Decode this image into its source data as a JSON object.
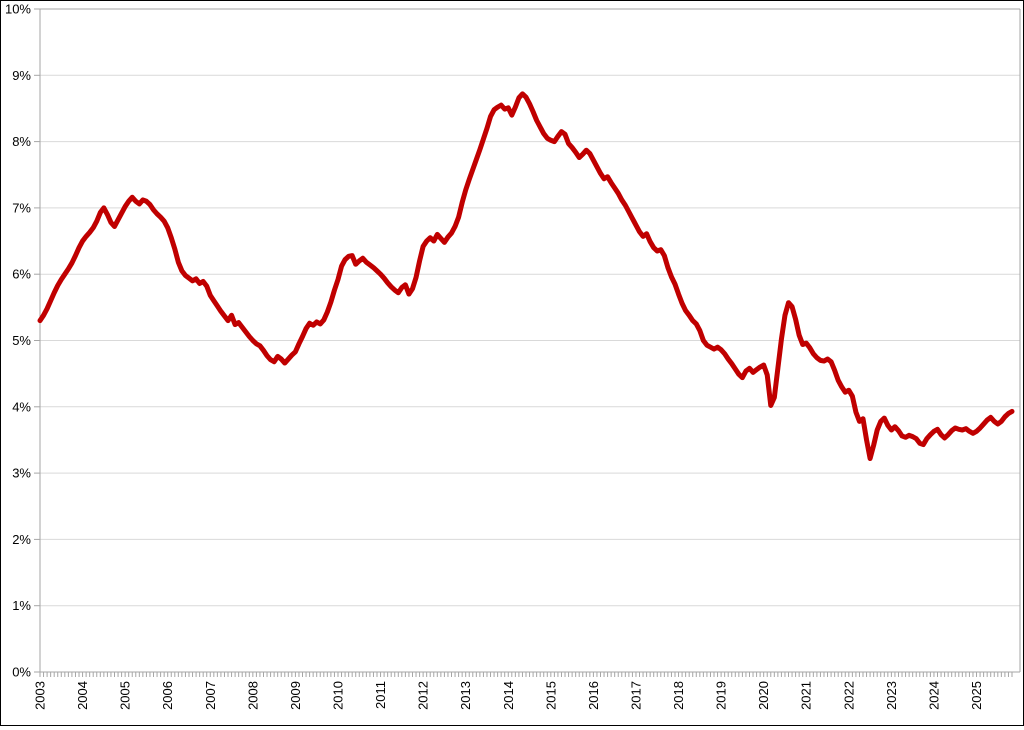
{
  "chart_data": {
    "type": "line",
    "title": "",
    "legend_position": "none",
    "grid": "horizontal",
    "frequency": "monthly",
    "x_start": "2003-01",
    "x_end": "2025-11",
    "ylim": [
      0,
      10
    ],
    "y_tick_labels": [
      "0%",
      "1%",
      "2%",
      "3%",
      "4%",
      "5%",
      "6%",
      "7%",
      "8%",
      "9%",
      "10%"
    ],
    "x_tick_labels": [
      "2003",
      "2004",
      "2005",
      "2006",
      "2007",
      "2008",
      "2009",
      "2010",
      "2011",
      "2012",
      "2013",
      "2014",
      "2015",
      "2016",
      "2017",
      "2018",
      "2019",
      "2020",
      "2021",
      "2022",
      "2023",
      "2024",
      "2025"
    ],
    "colors": {
      "line": "#C00000",
      "gridline": "#D9D9D9",
      "axis": "#A6A6A6",
      "tick": "#A6A6A6",
      "label": "#000000",
      "background": "#FFFFFF",
      "frame": "#000000"
    },
    "series": [
      {
        "name": "series-1",
        "color": "#C00000",
        "line_width": 5,
        "values": [
          5.3,
          5.38,
          5.48,
          5.6,
          5.72,
          5.83,
          5.92,
          6.0,
          6.08,
          6.17,
          6.28,
          6.4,
          6.5,
          6.57,
          6.63,
          6.7,
          6.8,
          6.93,
          7.0,
          6.9,
          6.78,
          6.72,
          6.82,
          6.92,
          7.02,
          7.1,
          7.16,
          7.1,
          7.06,
          7.12,
          7.1,
          7.05,
          6.97,
          6.91,
          6.86,
          6.8,
          6.7,
          6.55,
          6.38,
          6.18,
          6.05,
          5.98,
          5.94,
          5.9,
          5.93,
          5.86,
          5.89,
          5.82,
          5.68,
          5.6,
          5.52,
          5.44,
          5.37,
          5.3,
          5.38,
          5.24,
          5.27,
          5.2,
          5.13,
          5.06,
          5.0,
          4.95,
          4.92,
          4.85,
          4.77,
          4.71,
          4.68,
          4.76,
          4.72,
          4.66,
          4.72,
          4.78,
          4.83,
          4.95,
          5.06,
          5.18,
          5.26,
          5.23,
          5.28,
          5.25,
          5.31,
          5.43,
          5.58,
          5.76,
          5.92,
          6.12,
          6.22,
          6.27,
          6.28,
          6.15,
          6.2,
          6.24,
          6.18,
          6.14,
          6.1,
          6.05,
          6.0,
          5.94,
          5.87,
          5.81,
          5.76,
          5.72,
          5.8,
          5.84,
          5.7,
          5.78,
          5.95,
          6.2,
          6.42,
          6.5,
          6.55,
          6.5,
          6.6,
          6.54,
          6.48,
          6.56,
          6.62,
          6.72,
          6.86,
          7.08,
          7.27,
          7.43,
          7.58,
          7.73,
          7.88,
          8.04,
          8.2,
          8.38,
          8.48,
          8.52,
          8.55,
          8.49,
          8.51,
          8.4,
          8.52,
          8.66,
          8.72,
          8.67,
          8.57,
          8.45,
          8.32,
          8.22,
          8.12,
          8.05,
          8.02,
          8.0,
          8.08,
          8.15,
          8.11,
          7.97,
          7.91,
          7.84,
          7.76,
          7.81,
          7.87,
          7.82,
          7.72,
          7.62,
          7.52,
          7.44,
          7.47,
          7.38,
          7.3,
          7.22,
          7.12,
          7.04,
          6.94,
          6.84,
          6.74,
          6.64,
          6.57,
          6.61,
          6.49,
          6.4,
          6.35,
          6.37,
          6.28,
          6.1,
          5.96,
          5.85,
          5.7,
          5.56,
          5.45,
          5.38,
          5.3,
          5.25,
          5.15,
          5.0,
          4.93,
          4.9,
          4.87,
          4.9,
          4.86,
          4.8,
          4.72,
          4.65,
          4.57,
          4.49,
          4.44,
          4.54,
          4.58,
          4.52,
          4.56,
          4.6,
          4.63,
          4.48,
          4.02,
          4.14,
          4.58,
          5.02,
          5.38,
          5.57,
          5.51,
          5.32,
          5.08,
          4.94,
          4.96,
          4.89,
          4.8,
          4.74,
          4.7,
          4.69,
          4.72,
          4.68,
          4.55,
          4.4,
          4.3,
          4.22,
          4.25,
          4.16,
          3.92,
          3.78,
          3.82,
          3.5,
          3.22,
          3.42,
          3.65,
          3.78,
          3.83,
          3.72,
          3.65,
          3.7,
          3.64,
          3.56,
          3.54,
          3.57,
          3.55,
          3.52,
          3.45,
          3.43,
          3.52,
          3.58,
          3.63,
          3.66,
          3.58,
          3.53,
          3.58,
          3.64,
          3.68,
          3.66,
          3.65,
          3.67,
          3.63,
          3.6,
          3.63,
          3.68,
          3.74,
          3.8,
          3.84,
          3.78,
          3.74,
          3.78,
          3.85,
          3.9,
          3.93
        ]
      }
    ]
  }
}
